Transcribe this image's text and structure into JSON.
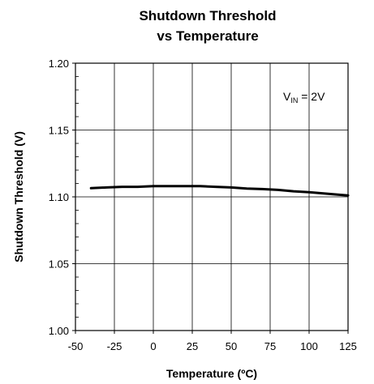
{
  "chart_data": {
    "type": "line",
    "title_lines": [
      "Shutdown Threshold",
      "vs Temperature"
    ],
    "xlabel": "Temperature (ºC)",
    "ylabel": "Shutdown Threshold (V)",
    "xlim": [
      -50,
      125
    ],
    "ylim": [
      1.0,
      1.2
    ],
    "x_ticks": [
      -50,
      -25,
      0,
      25,
      50,
      75,
      100,
      125
    ],
    "x_tick_labels": [
      "-50",
      "-25",
      "0",
      "25",
      "50",
      "75",
      "100",
      "125"
    ],
    "y_ticks": [
      1.0,
      1.05,
      1.1,
      1.15,
      1.2
    ],
    "y_tick_labels": [
      "1.00",
      "1.05",
      "1.10",
      "1.15",
      "1.20"
    ],
    "grid": true,
    "annotation": {
      "main": "V",
      "sub": "IN",
      "rest": " = 2V"
    },
    "series": [
      {
        "color": "#000000",
        "x": [
          -40,
          -30,
          -20,
          -10,
          0,
          10,
          20,
          30,
          40,
          50,
          60,
          70,
          80,
          90,
          100,
          110,
          120,
          125
        ],
        "y": [
          1.1065,
          1.107,
          1.1075,
          1.1075,
          1.108,
          1.108,
          1.108,
          1.108,
          1.1075,
          1.107,
          1.1062,
          1.1058,
          1.1052,
          1.1042,
          1.1035,
          1.1025,
          1.1015,
          1.101
        ]
      }
    ]
  }
}
